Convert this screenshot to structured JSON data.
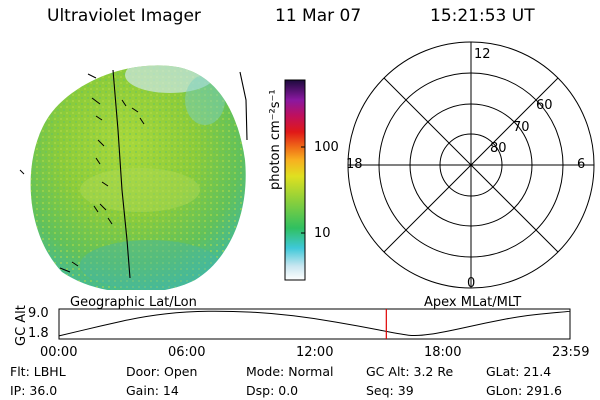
{
  "header": {
    "title": "Ultraviolet Imager",
    "date": "11 Mar 07",
    "time": "15:21:53 UT"
  },
  "colorbar": {
    "unit_label": "photon cm⁻²s⁻¹",
    "ticks": [
      "100",
      "10"
    ]
  },
  "polar_plot": {
    "mlt_labels": {
      "top": "12",
      "right": "6",
      "bottom": "0",
      "left": "18"
    },
    "lat_labels": [
      "60",
      "70",
      "80"
    ]
  },
  "altitude_plot": {
    "ylabel": "GC Alt",
    "yticks": [
      "9.0",
      "1.8"
    ],
    "left_title": "Geographic Lat/Lon",
    "right_title": "Apex MLat/MLT",
    "xticks": [
      "00:00",
      "06:00",
      "12:00",
      "18:00",
      "23:59"
    ],
    "current_marker_color": "#e00000"
  },
  "chart_data": {
    "type": "line",
    "title": "",
    "xlabel": "",
    "ylabel": "GC Alt",
    "x": [
      0,
      2,
      4,
      6,
      8,
      10,
      12,
      14,
      16,
      16.8,
      18,
      20,
      22,
      23.98
    ],
    "values": [
      1.9,
      4.8,
      7.5,
      8.9,
      9.0,
      8.4,
      6.9,
      4.8,
      2.4,
      1.8,
      2.9,
      5.6,
      7.9,
      8.9
    ],
    "xlim": [
      0,
      23.98
    ],
    "ylim": [
      1.0,
      9.6
    ],
    "current_time": 15.36
  },
  "status": {
    "flt": "Flt: LBHL",
    "door": "Door: Open",
    "mode": "Mode: Normal",
    "gcalt": "GC Alt: 3.2 Re",
    "glat": "GLat:  21.4",
    "ip": "IP: 36.0",
    "gain": "Gain: 14",
    "dsp": "Dsp:    0.0",
    "seq": "Seq: 39",
    "glon": "GLon: 291.6"
  },
  "colors": {
    "image_green": "#8ccc3a",
    "image_teal": "#3ab8a8"
  }
}
